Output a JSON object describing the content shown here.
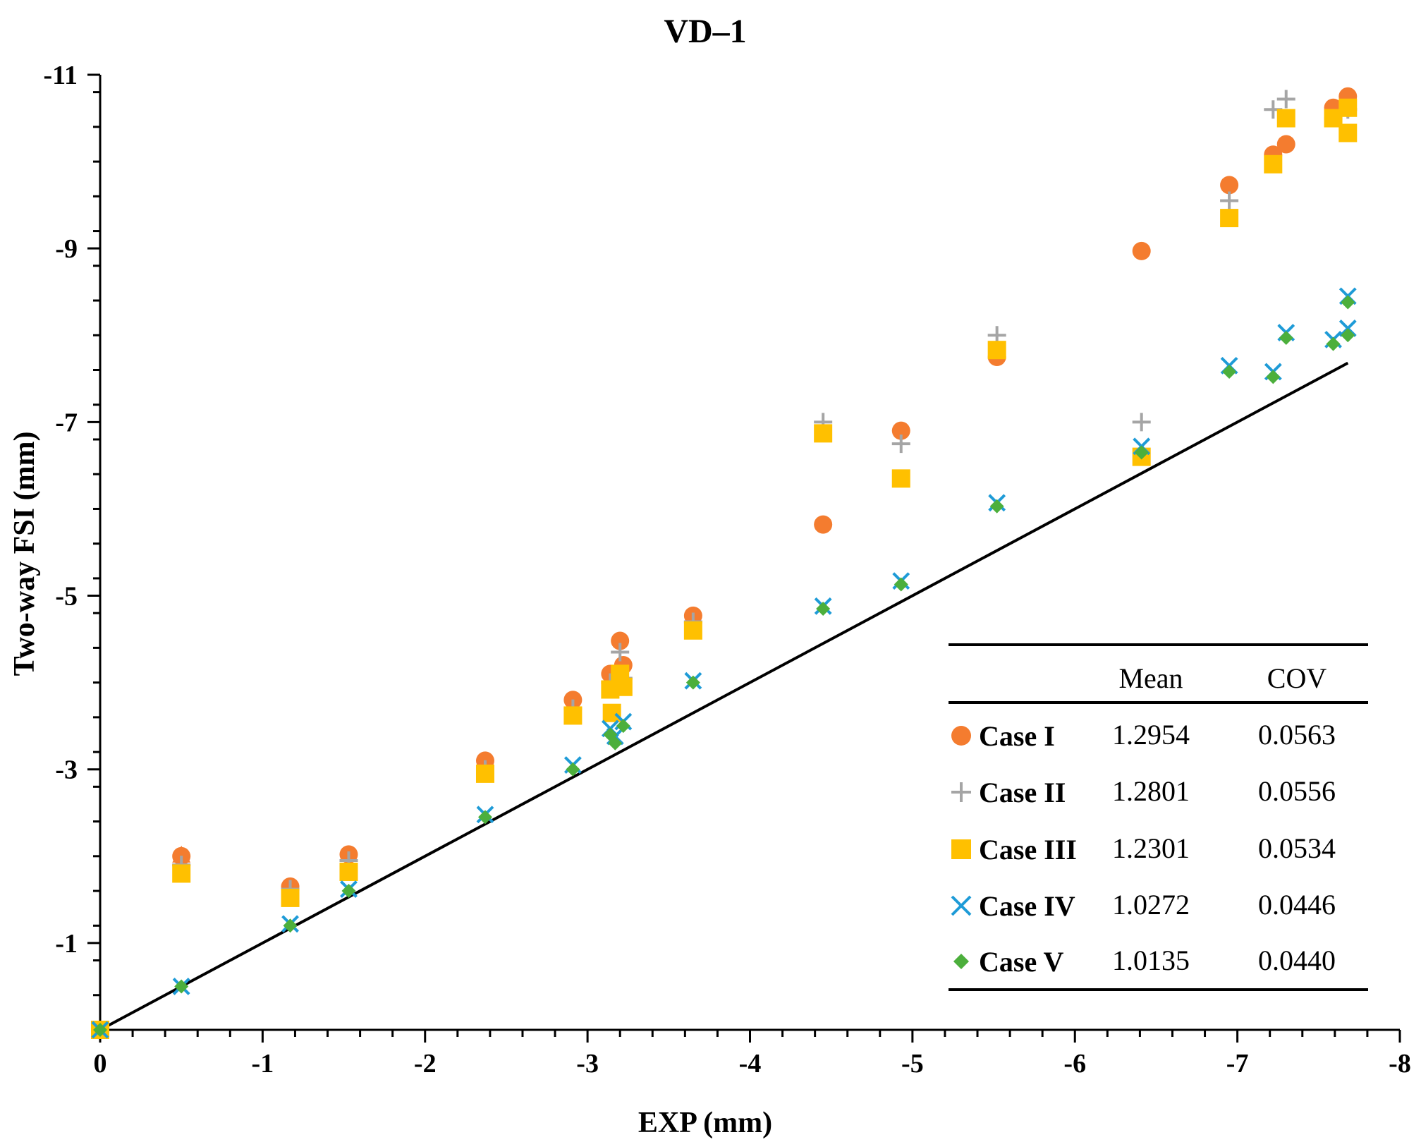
{
  "chart_data": {
    "type": "scatter",
    "title": "VD–1",
    "xlabel": "EXP (mm)",
    "ylabel": "Two-way FSI (mm)",
    "xlim": [
      0,
      -8
    ],
    "ylim": [
      0,
      -11
    ],
    "x_ticks": [
      0,
      -1,
      -2,
      -3,
      -4,
      -5,
      -6,
      -7,
      -8
    ],
    "x_tick_labels": [
      "0",
      "-1",
      "-2",
      "-3",
      "-4",
      "-5",
      "-6",
      "-7",
      "-8"
    ],
    "y_ticks": [
      -1,
      -3,
      -5,
      -7,
      -9,
      -11
    ],
    "y_tick_labels": [
      "-1",
      "-3",
      "-5",
      "-7",
      "-9",
      "-11"
    ],
    "reference_line": {
      "x": [
        0,
        -7.68
      ],
      "y": [
        0,
        -7.68
      ]
    },
    "series": [
      {
        "name": "Case I",
        "marker": "circle",
        "color": "#F47C2F",
        "x": [
          0,
          -0.5,
          -1.17,
          -1.53,
          -2.37,
          -2.91,
          -3.14,
          -3.2,
          -3.22,
          -3.65,
          -4.45,
          -4.93,
          -5.52,
          -6.41,
          -6.95,
          -7.22,
          -7.3,
          -7.59,
          -7.68
        ],
        "y": [
          0,
          -2.0,
          -1.65,
          -2.02,
          -3.1,
          -3.8,
          -4.1,
          -4.48,
          -4.2,
          -4.77,
          -5.82,
          -6.9,
          -7.75,
          -8.97,
          -9.73,
          -10.08,
          -10.2,
          -10.62,
          -10.75
        ]
      },
      {
        "name": "Case II",
        "marker": "plus",
        "color": "#A5A5A5",
        "x": [
          0,
          -0.5,
          -1.17,
          -1.53,
          -2.37,
          -2.91,
          -3.14,
          -3.2,
          -3.22,
          -3.65,
          -4.45,
          -4.93,
          -5.52,
          -6.41,
          -6.95,
          -7.22,
          -7.3,
          -7.59,
          -7.68
        ],
        "y": [
          0,
          -1.9,
          -1.62,
          -1.95,
          -3.0,
          -3.7,
          -4.0,
          -4.35,
          -4.05,
          -4.7,
          -7.0,
          -6.75,
          -8.0,
          -7.0,
          -9.55,
          -10.6,
          -10.72,
          -10.5,
          -10.6
        ]
      },
      {
        "name": "Case III",
        "marker": "square",
        "color": "#FFC000",
        "x": [
          0,
          -0.5,
          -1.17,
          -1.53,
          -2.37,
          -2.91,
          -3.14,
          -3.15,
          -3.2,
          -3.22,
          -3.65,
          -4.45,
          -4.93,
          -5.52,
          -6.41,
          -6.95,
          -7.22,
          -7.3,
          -7.59,
          -7.68,
          -7.68
        ],
        "y": [
          0,
          -1.8,
          -1.52,
          -1.82,
          -2.95,
          -3.62,
          -3.92,
          -3.65,
          -4.1,
          -3.95,
          -4.6,
          -6.87,
          -6.35,
          -7.83,
          -6.6,
          -9.35,
          -9.97,
          -10.5,
          -10.5,
          -10.62,
          -10.33
        ]
      },
      {
        "name": "Case IV",
        "marker": "x",
        "color": "#1E9BD7",
        "x": [
          0,
          -0.5,
          -1.17,
          -1.53,
          -2.37,
          -2.91,
          -3.14,
          -3.17,
          -3.22,
          -3.65,
          -4.45,
          -4.93,
          -5.52,
          -6.41,
          -6.95,
          -7.22,
          -7.3,
          -7.59,
          -7.68,
          -7.68
        ],
        "y": [
          0,
          -0.5,
          -1.22,
          -1.62,
          -2.48,
          -3.05,
          -3.47,
          -3.38,
          -3.55,
          -4.02,
          -4.88,
          -5.17,
          -6.07,
          -6.72,
          -7.65,
          -7.58,
          -8.03,
          -7.95,
          -8.45,
          -8.08
        ]
      },
      {
        "name": "Case V",
        "marker": "diamond",
        "color": "#4CAF3C",
        "x": [
          0,
          -0.5,
          -1.17,
          -1.53,
          -2.37,
          -2.91,
          -3.14,
          -3.17,
          -3.22,
          -3.65,
          -4.45,
          -4.93,
          -5.52,
          -6.41,
          -6.95,
          -7.22,
          -7.3,
          -7.59,
          -7.68,
          -7.68
        ],
        "y": [
          0,
          -0.5,
          -1.2,
          -1.6,
          -2.45,
          -3.0,
          -3.4,
          -3.3,
          -3.5,
          -4.0,
          -4.85,
          -5.13,
          -6.03,
          -6.65,
          -7.58,
          -7.52,
          -7.97,
          -7.9,
          -8.38,
          -8.0
        ]
      }
    ],
    "legend": {
      "placement": "bottom-right",
      "header_mean": "Mean",
      "header_cov": "COV",
      "rows": [
        {
          "name": "Case I",
          "mean": "1.2954",
          "cov": "0.0563"
        },
        {
          "name": "Case II",
          "mean": "1.2801",
          "cov": "0.0556"
        },
        {
          "name": "Case III",
          "mean": "1.2301",
          "cov": "0.0534"
        },
        {
          "name": "Case IV",
          "mean": "1.0272",
          "cov": "0.0446"
        },
        {
          "name": "Case V",
          "mean": "1.0135",
          "cov": "0.0440"
        }
      ]
    },
    "extra_points": [
      {
        "series_color": "#F47C2F",
        "marker": "triangle",
        "x": -0.5,
        "y": -2.0
      }
    ]
  }
}
